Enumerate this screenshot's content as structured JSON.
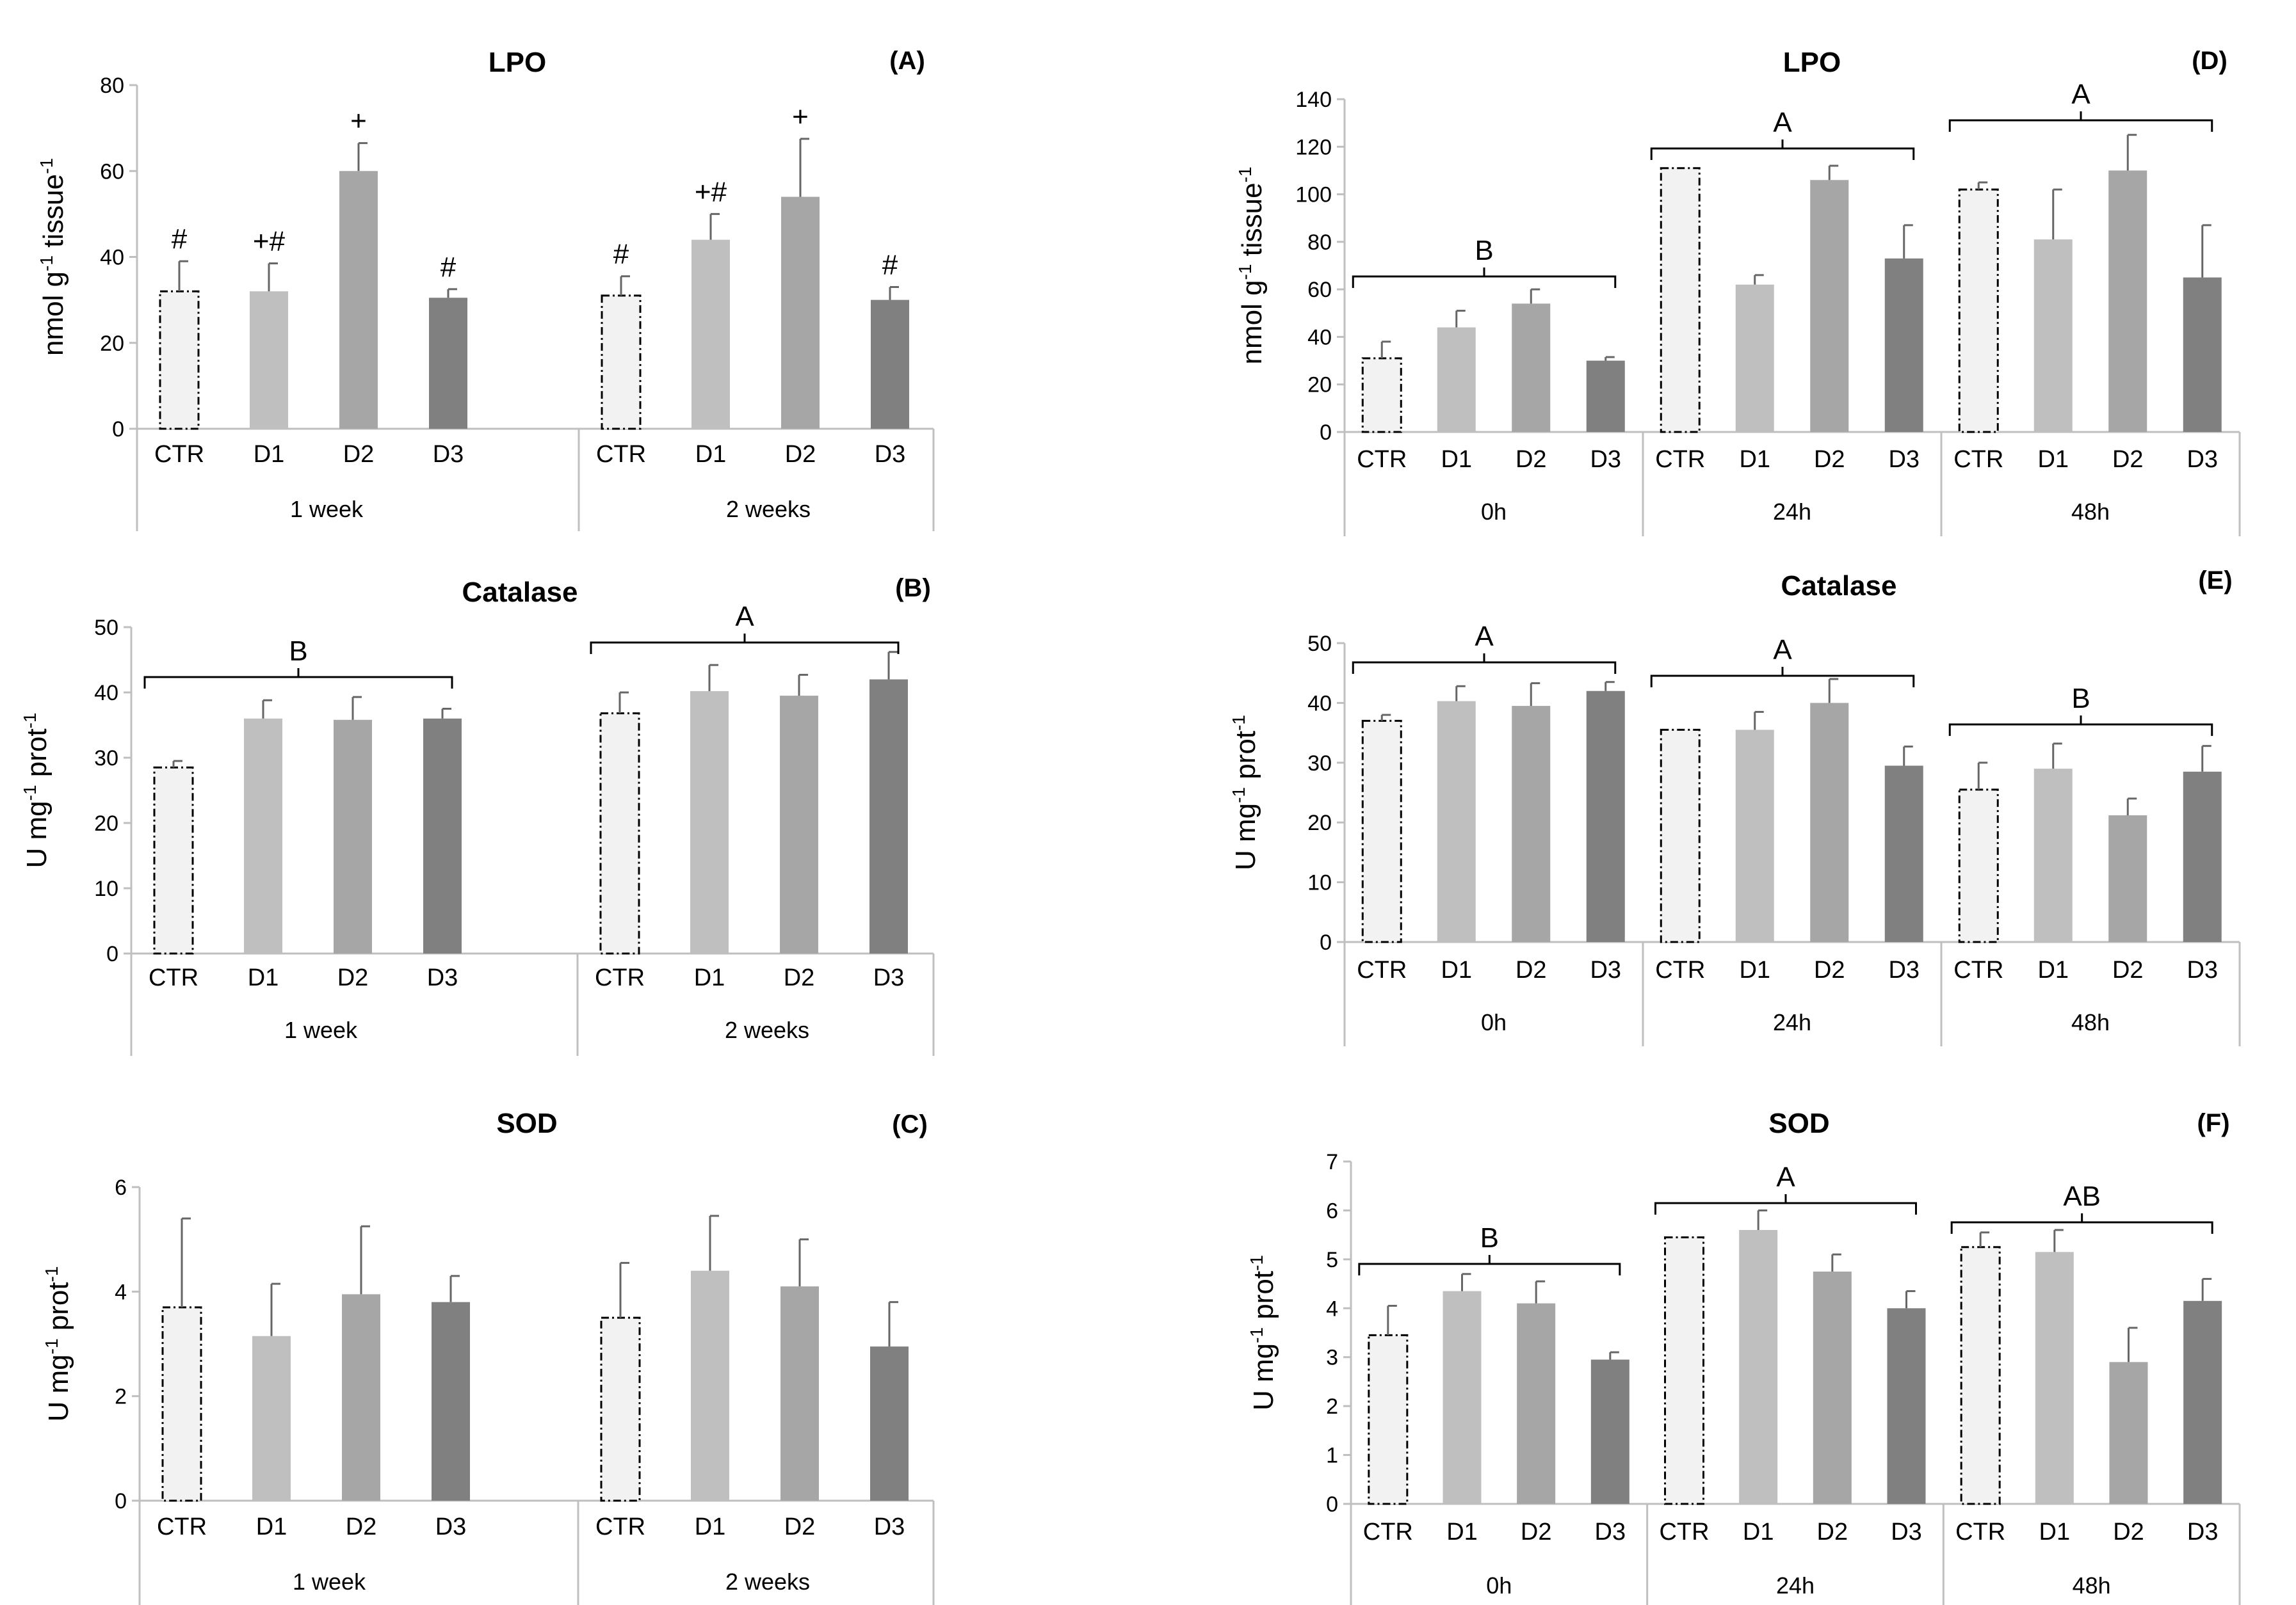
{
  "palette": {
    "CTR": "#f2f2f2",
    "D1": "#bfbfbf",
    "D2": "#a6a6a6",
    "D3": "#808080",
    "axis": "#bfbfbf",
    "error": "#666666",
    "text": "#000000"
  },
  "chart_data": [
    {
      "id": "A",
      "type": "bar",
      "title": "LPO",
      "panel_letter": "(A)",
      "ylabel": "nmol g",
      "ylabel_sup1": "-1",
      "ylabel_mid": " tissue",
      "ylabel_sup2": "-1",
      "ylim": [
        0,
        80
      ],
      "yticks": [
        0,
        20,
        40,
        60,
        80
      ],
      "grid": false,
      "groups": [
        {
          "name": "1 week",
          "categories": [
            "CTR",
            "D1",
            "D2",
            "D3"
          ],
          "values": [
            32,
            32,
            60,
            30.5
          ],
          "errors": [
            7,
            6.5,
            6.5,
            2
          ],
          "annotations": [
            "#",
            "+#",
            "+",
            "#"
          ]
        },
        {
          "name": "2 weeks",
          "categories": [
            "CTR",
            "D1",
            "D2",
            "D3"
          ],
          "values": [
            31,
            44,
            54,
            30
          ],
          "errors": [
            4.5,
            6,
            13.5,
            3
          ],
          "annotations": [
            "#",
            "+#",
            "+",
            "#"
          ]
        }
      ],
      "brackets": []
    },
    {
      "id": "B",
      "type": "bar",
      "title": "Catalase",
      "panel_letter": "(B)",
      "ylabel": "U mg",
      "ylabel_sup1": "-1",
      "ylabel_mid": " prot",
      "ylabel_sup2": "-1",
      "ylim": [
        0,
        50
      ],
      "yticks": [
        0,
        10,
        20,
        30,
        40,
        50
      ],
      "grid": false,
      "groups": [
        {
          "name": "1 week",
          "categories": [
            "CTR",
            "D1",
            "D2",
            "D3"
          ],
          "values": [
            28.5,
            36,
            35.8,
            36
          ],
          "errors": [
            1,
            2.8,
            3.5,
            1.5
          ],
          "annotations": []
        },
        {
          "name": "2 weeks",
          "categories": [
            "CTR",
            "D1",
            "D2",
            "D3"
          ],
          "values": [
            36.8,
            40.2,
            39.5,
            42
          ],
          "errors": [
            3.2,
            4,
            3.2,
            4.2
          ],
          "annotations": []
        }
      ],
      "brackets": [
        {
          "label": "B",
          "group": 0
        },
        {
          "label": "A",
          "group": 1
        }
      ]
    },
    {
      "id": "C",
      "type": "bar",
      "title": "SOD",
      "panel_letter": "(C)",
      "ylabel": "U mg",
      "ylabel_sup1": "-1",
      "ylabel_mid": " prot",
      "ylabel_sup2": "-1",
      "ylim": [
        0,
        6
      ],
      "yticks": [
        0,
        2,
        4,
        6
      ],
      "grid": false,
      "groups": [
        {
          "name": "1 week",
          "categories": [
            "CTR",
            "D1",
            "D2",
            "D3"
          ],
          "values": [
            3.7,
            3.15,
            3.95,
            3.8
          ],
          "errors": [
            1.7,
            1,
            1.3,
            0.5
          ],
          "annotations": []
        },
        {
          "name": "2 weeks",
          "categories": [
            "CTR",
            "D1",
            "D2",
            "D3"
          ],
          "values": [
            3.5,
            4.4,
            4.1,
            2.95
          ],
          "errors": [
            1.05,
            1.05,
            0.9,
            0.85
          ],
          "annotations": []
        }
      ],
      "brackets": []
    },
    {
      "id": "D",
      "type": "bar",
      "title": "LPO",
      "panel_letter": "(D)",
      "ylabel": "nmol g",
      "ylabel_sup1": "-1",
      "ylabel_mid": " tissue",
      "ylabel_sup2": "-1",
      "ylim": [
        0,
        140
      ],
      "yticks": [
        0,
        20,
        40,
        60,
        80,
        100,
        120,
        140
      ],
      "grid": false,
      "groups": [
        {
          "name": "0h",
          "categories": [
            "CTR",
            "D1",
            "D2",
            "D3"
          ],
          "values": [
            31,
            44,
            54,
            30
          ],
          "errors": [
            7,
            7,
            6,
            1.5
          ],
          "annotations": []
        },
        {
          "name": "24h",
          "categories": [
            "CTR",
            "D1",
            "D2",
            "D3"
          ],
          "values": [
            111,
            62,
            106,
            73
          ],
          "errors": [
            0,
            4,
            6,
            14
          ],
          "annotations": []
        },
        {
          "name": "48h",
          "categories": [
            "CTR",
            "D1",
            "D2",
            "D3"
          ],
          "values": [
            102,
            81,
            110,
            65
          ],
          "errors": [
            3,
            21,
            15,
            22
          ],
          "annotations": []
        }
      ],
      "brackets": [
        {
          "label": "B",
          "group": 0
        },
        {
          "label": "A",
          "group": 1
        },
        {
          "label": "A",
          "group": 2
        }
      ]
    },
    {
      "id": "E",
      "type": "bar",
      "title": "Catalase",
      "panel_letter": "(E)",
      "ylabel": "U mg",
      "ylabel_sup1": "-1",
      "ylabel_mid": " prot",
      "ylabel_sup2": "-1",
      "ylim": [
        0,
        50
      ],
      "yticks": [
        0,
        10,
        20,
        30,
        40,
        50
      ],
      "grid": false,
      "groups": [
        {
          "name": "0h",
          "categories": [
            "CTR",
            "D1",
            "D2",
            "D3"
          ],
          "values": [
            37,
            40.3,
            39.5,
            42
          ],
          "errors": [
            1,
            2.5,
            3.8,
            1.5
          ],
          "annotations": []
        },
        {
          "name": "24h",
          "categories": [
            "CTR",
            "D1",
            "D2",
            "D3"
          ],
          "values": [
            35.5,
            35.5,
            40,
            29.5
          ],
          "errors": [
            0,
            3,
            4,
            3.2
          ],
          "annotations": []
        },
        {
          "name": "48h",
          "categories": [
            "CTR",
            "D1",
            "D2",
            "D3"
          ],
          "values": [
            25.5,
            29,
            21.2,
            28.5
          ],
          "errors": [
            4.5,
            4.2,
            2.8,
            4.3
          ],
          "annotations": []
        }
      ],
      "brackets": [
        {
          "label": "A",
          "group": 0
        },
        {
          "label": "A",
          "group": 1
        },
        {
          "label": "B",
          "group": 2
        }
      ]
    },
    {
      "id": "F",
      "type": "bar",
      "title": "SOD",
      "panel_letter": "(F)",
      "ylabel": "U mg",
      "ylabel_sup1": "-1",
      "ylabel_mid": " prot",
      "ylabel_sup2": "-1",
      "ylim": [
        0,
        7
      ],
      "yticks": [
        0,
        1,
        2,
        3,
        4,
        5,
        6,
        7
      ],
      "grid": false,
      "groups": [
        {
          "name": "0h",
          "categories": [
            "CTR",
            "D1",
            "D2",
            "D3"
          ],
          "values": [
            3.45,
            4.35,
            4.1,
            2.95
          ],
          "errors": [
            0.6,
            0.35,
            0.45,
            0.15
          ],
          "annotations": []
        },
        {
          "name": "24h",
          "categories": [
            "CTR",
            "D1",
            "D2",
            "D3"
          ],
          "values": [
            5.45,
            5.6,
            4.75,
            4.0
          ],
          "errors": [
            0,
            0.4,
            0.35,
            0.35
          ],
          "annotations": []
        },
        {
          "name": "48h",
          "categories": [
            "CTR",
            "D1",
            "D2",
            "D3"
          ],
          "values": [
            5.25,
            5.15,
            2.9,
            4.15
          ],
          "errors": [
            0.3,
            0.45,
            0.7,
            0.45
          ],
          "annotations": []
        }
      ],
      "brackets": [
        {
          "label": "B",
          "group": 0
        },
        {
          "label": "A",
          "group": 1
        },
        {
          "label": "AB",
          "group": 2
        }
      ]
    }
  ]
}
